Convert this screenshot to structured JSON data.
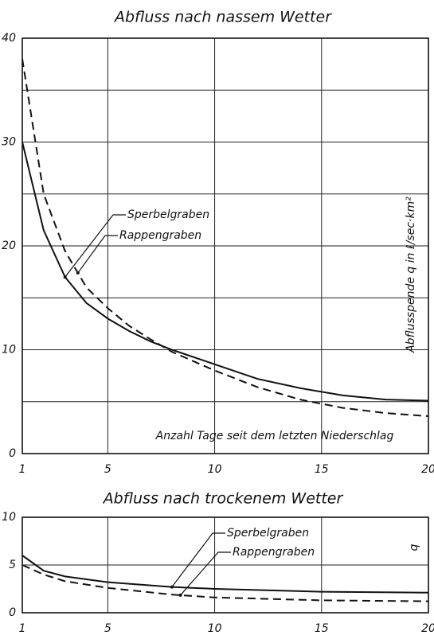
{
  "chart_data": [
    {
      "type": "line",
      "title": "Abfluss nach nassem Wetter",
      "x_label": "Anzahl Tage seit dem letzten Niederschlag",
      "y_label": "Abflusspende q in ℓ/sec·km²",
      "xlim": [
        1,
        20
      ],
      "xticks": [
        1,
        5,
        10,
        15,
        20
      ],
      "ylim": [
        0,
        40
      ],
      "yticks": [
        0,
        10,
        20,
        30,
        40
      ],
      "y_minor_grid": [
        5,
        15,
        25,
        35
      ],
      "grid": true,
      "x": [
        1,
        2,
        3,
        4,
        5,
        6,
        7,
        8,
        10,
        12,
        14,
        16,
        18,
        20
      ],
      "series": [
        {
          "name": "Sperbelgraben",
          "color": "#111111",
          "dash": "solid",
          "values": [
            30,
            21.5,
            17,
            14.5,
            13,
            11.8,
            10.8,
            10,
            8.6,
            7.2,
            6.3,
            5.6,
            5.2,
            5.1
          ]
        },
        {
          "name": "Rappengraben",
          "color": "#111111",
          "dash": "dashed",
          "values": [
            38,
            25,
            19.5,
            16,
            14,
            12.3,
            11,
            9.8,
            8,
            6.4,
            5.2,
            4.4,
            3.9,
            3.6
          ]
        }
      ]
    },
    {
      "type": "line",
      "title": "Abfluss nach trockenem Wetter",
      "y_label": "q",
      "xlim": [
        1,
        20
      ],
      "xticks": [
        1,
        5,
        10,
        15,
        20
      ],
      "ylim": [
        0,
        10
      ],
      "yticks": [
        0,
        5,
        10
      ],
      "grid": true,
      "x": [
        1,
        2,
        3,
        5,
        8,
        10,
        15,
        20
      ],
      "series": [
        {
          "name": "Sperbelgraben",
          "color": "#111111",
          "dash": "solid",
          "values": [
            6,
            4.4,
            3.8,
            3.2,
            2.7,
            2.5,
            2.2,
            2.1
          ]
        },
        {
          "name": "Rappengraben",
          "color": "#111111",
          "dash": "dashed",
          "values": [
            5,
            4,
            3.3,
            2.6,
            1.9,
            1.6,
            1.3,
            1.2
          ]
        }
      ]
    }
  ]
}
